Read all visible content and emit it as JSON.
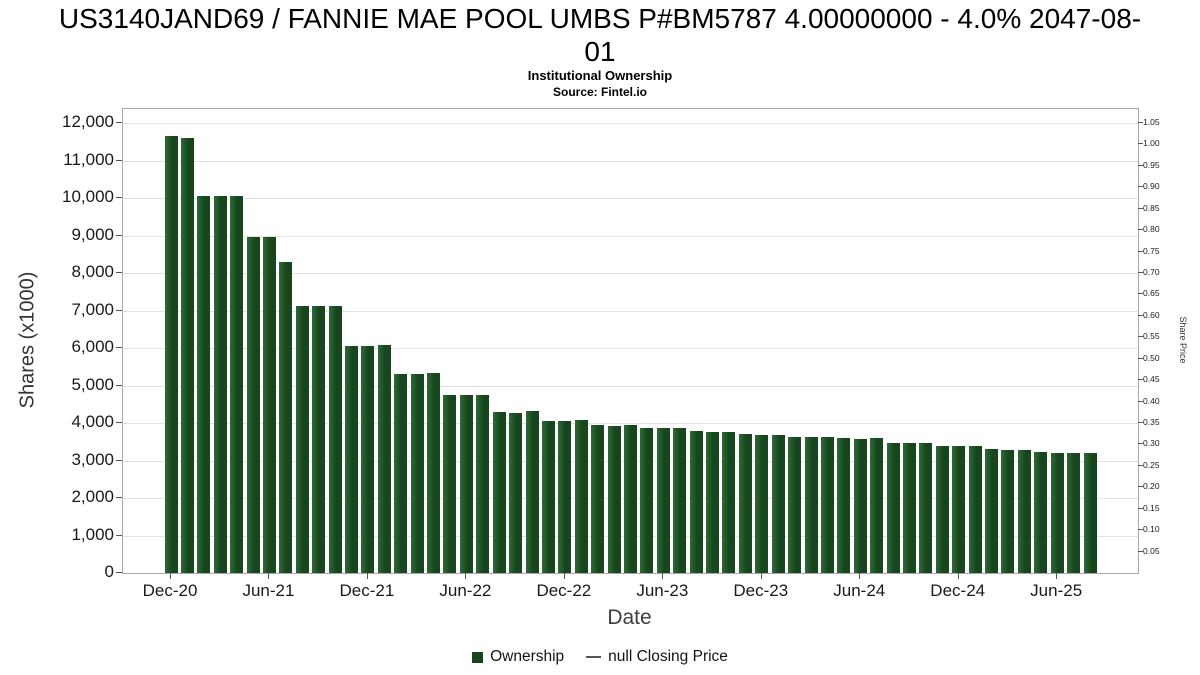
{
  "header": {
    "title_line1": "US3140JAND69 / FANNIE MAE POOL UMBS P#BM5787 4.00000000 - 4.0% 2047-08-",
    "title_line2": "01",
    "subtitle": "Institutional Ownership",
    "source": "Source: Fintel.io"
  },
  "axes": {
    "x_title": "Date",
    "y_left_title": "Shares (x1000)",
    "y_right_title": "Share Price"
  },
  "legend": {
    "ownership_label": "Ownership",
    "price_label": "null Closing Price"
  },
  "colors": {
    "bar": "#17461e",
    "bar_highlight": "#2f6b36",
    "legend_line": "#555555"
  },
  "chart_data": {
    "type": "bar",
    "title": "US3140JAND69 / FANNIE MAE POOL UMBS P#BM5787 4.00000000 - 4.0% 2047-08-01",
    "subtitle": "Institutional Ownership",
    "source": "Source: Fintel.io",
    "xlabel": "Date",
    "ylabel_left": "Shares (x1000)",
    "ylabel_right": "Share Price",
    "legend": [
      "Ownership",
      "null Closing Price"
    ],
    "legend_position": "bottom",
    "grid": "horizontal",
    "y_left_axis": {
      "min": 0,
      "max": 12000,
      "tick_step": 1000
    },
    "y_right_axis": {
      "min": 0.05,
      "max": 1.05,
      "tick_step": 0.05
    },
    "x_major_tick_labels": [
      "Dec-20",
      "Jun-21",
      "Dec-21",
      "Jun-22",
      "Dec-22",
      "Jun-23",
      "Dec-23",
      "Jun-24",
      "Dec-24",
      "Jun-25"
    ],
    "x": [
      "Dec-20",
      "Jan-21",
      "Feb-21",
      "Mar-21",
      "Apr-21",
      "May-21",
      "Jun-21",
      "Jul-21",
      "Aug-21",
      "Sep-21",
      "Oct-21",
      "Nov-21",
      "Dec-21",
      "Jan-22",
      "Feb-22",
      "Mar-22",
      "Apr-22",
      "May-22",
      "Jun-22",
      "Jul-22",
      "Aug-22",
      "Sep-22",
      "Oct-22",
      "Nov-22",
      "Dec-22",
      "Jan-23",
      "Feb-23",
      "Mar-23",
      "Apr-23",
      "May-23",
      "Jun-23",
      "Jul-23",
      "Aug-23",
      "Sep-23",
      "Oct-23",
      "Nov-23",
      "Dec-23",
      "Jan-24",
      "Feb-24",
      "Mar-24",
      "Apr-24",
      "May-24",
      "Jun-24",
      "Jul-24",
      "Aug-24",
      "Sep-24",
      "Oct-24",
      "Nov-24",
      "Dec-24",
      "Jan-25",
      "Feb-25",
      "Mar-25",
      "Apr-25",
      "May-25",
      "Jun-25",
      "Jul-25",
      "Aug-25"
    ],
    "series": [
      {
        "name": "Ownership",
        "unit": "shares x1000",
        "values": [
          11650,
          11600,
          10050,
          10050,
          10060,
          8950,
          8950,
          8300,
          7120,
          7110,
          7130,
          6060,
          6050,
          6070,
          5310,
          5310,
          5330,
          4760,
          4740,
          4750,
          4300,
          4280,
          4310,
          4060,
          4050,
          4070,
          3960,
          3930,
          3940,
          3880,
          3860,
          3870,
          3780,
          3760,
          3770,
          3700,
          3680,
          3690,
          3640,
          3620,
          3630,
          3600,
          3580,
          3590,
          3480,
          3460,
          3470,
          3400,
          3380,
          3390,
          3300,
          3280,
          3290,
          3220,
          3200,
          3210,
          3200
        ]
      },
      {
        "name": "null Closing Price",
        "unit": "share price",
        "values": []
      }
    ]
  }
}
